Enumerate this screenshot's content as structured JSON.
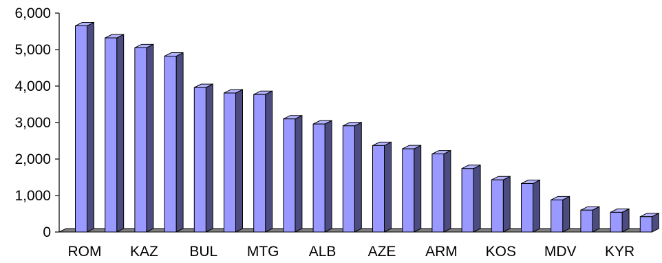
{
  "chart_data": {
    "type": "bar",
    "style": "3d-column",
    "categories": [
      "ROM",
      "",
      "KAZ",
      "",
      "BUL",
      "",
      "MTG",
      "",
      "ALB",
      "",
      "AZE",
      "",
      "ARM",
      "",
      "KOS",
      "",
      "MDV",
      "",
      "KYR",
      ""
    ],
    "values": [
      5650,
      5320,
      5050,
      4820,
      3960,
      3810,
      3770,
      3100,
      2960,
      2910,
      2370,
      2280,
      2140,
      1740,
      1430,
      1330,
      880,
      600,
      540,
      420
    ],
    "title": "",
    "xlabel": "",
    "ylabel": "",
    "ylim": [
      0,
      6000
    ],
    "yticks": [
      "0",
      "1,000",
      "2,000",
      "3,000",
      "4,000",
      "5,000",
      "6,000"
    ],
    "grid": false,
    "legend": "none",
    "colors": {
      "bar_front": "#9999ff",
      "bar_side": "#4c4c80",
      "bar_top": "#b3b3ff",
      "floor": "#808080",
      "axis": "#000000"
    }
  }
}
